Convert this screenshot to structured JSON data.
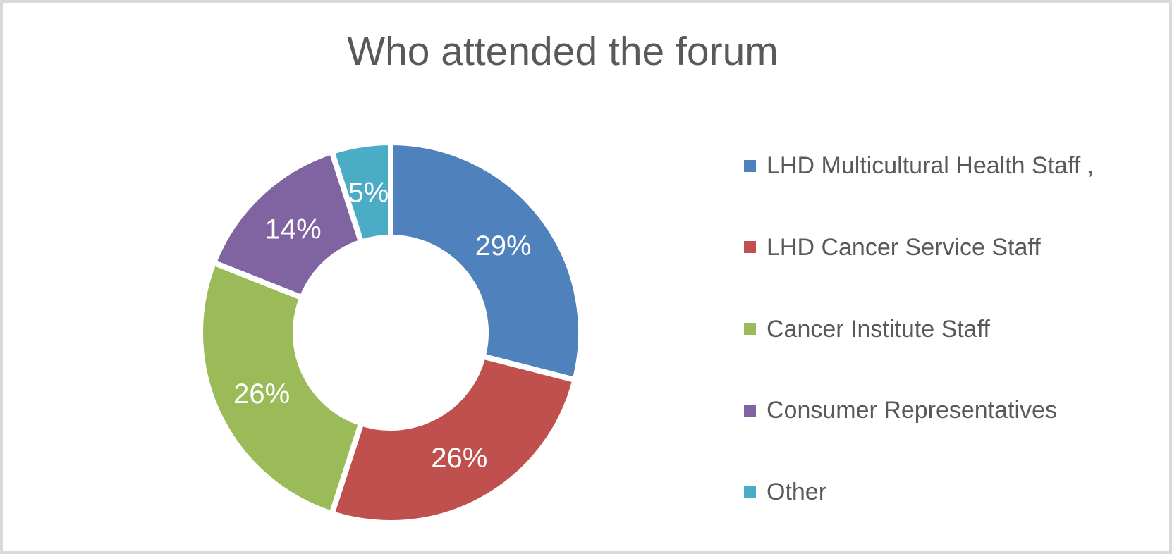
{
  "frame": {
    "background_color": "#FFFFFF",
    "border_color": "#D9D9D9",
    "title_color": "#595959",
    "legend_text_color": "#595959",
    "data_label_color": "#FFFFFF",
    "slice_gap_color": "#FFFFFF"
  },
  "chart_data": {
    "type": "pie",
    "subtype": "doughnut",
    "title": "Who attended the forum",
    "categories": [
      "LHD Multicultural Health Staff ,",
      "LHD Cancer Service Staff",
      "Cancer Institute Staff",
      "Consumer Representatives",
      "Other"
    ],
    "values": [
      29,
      26,
      26,
      14,
      5
    ],
    "data_labels": [
      "29%",
      "26%",
      "26%",
      "14%",
      "5%"
    ],
    "colors": [
      "#4F81BD",
      "#C0504D",
      "#9BBB59",
      "#8064A2",
      "#4BACC6"
    ],
    "legend_position": "right",
    "start_angle_deg": 0,
    "direction": "clockwise",
    "hole_ratio": 0.5,
    "grid": false
  }
}
